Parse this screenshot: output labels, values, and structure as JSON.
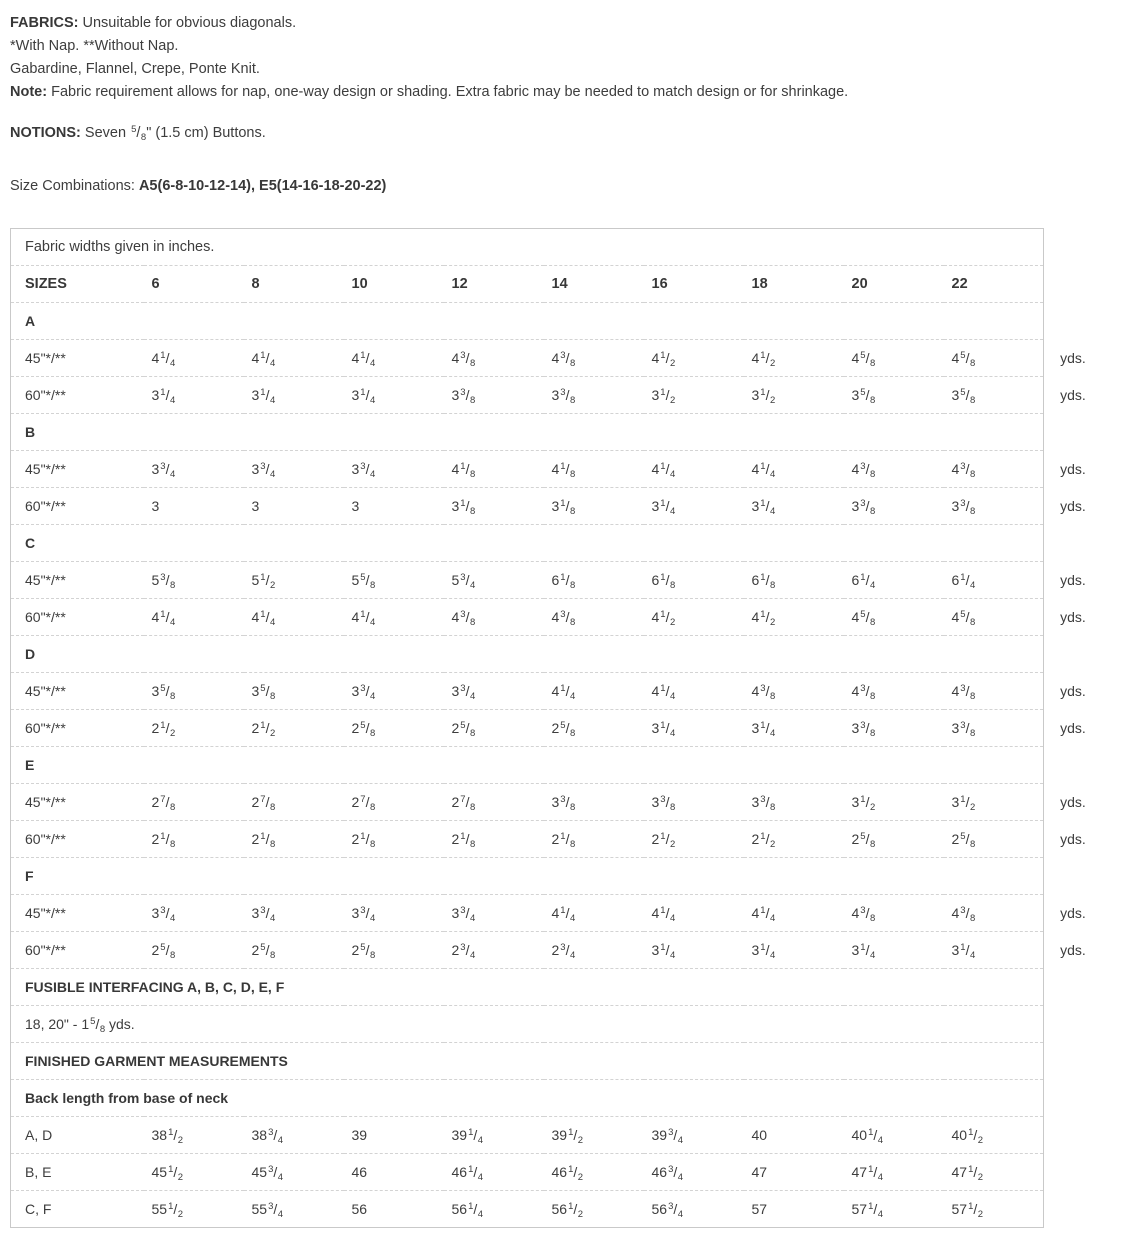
{
  "page": {
    "fabrics_label": "FABRICS:",
    "fabrics_text": " Unsuitable for obvious diagonals.",
    "nap_note": "*With Nap. **Without Nap.",
    "fabric_list": "Gabardine, Flannel, Crepe, Ponte Knit.",
    "note_label": "Note:",
    "note_text": " Fabric requirement allows for nap, one-way design or shading. Extra fabric may be needed to match design or for shrinkage.",
    "notions_label": "NOTIONS:",
    "notions_prefix": " Seven ",
    "notions_fraction": "5/8",
    "notions_suffix": "\" (1.5 cm) Buttons.",
    "size_combinations_label": "Size Combinations: ",
    "size_combinations_value": "A5(6-8-10-12-14), E5(14-16-18-20-22)"
  },
  "table": {
    "caption": "Fabric widths given in inches.",
    "header": [
      "SIZES",
      "6",
      "8",
      "10",
      "12",
      "14",
      "16",
      "18",
      "20",
      "22"
    ],
    "sections": [
      {
        "name": "A",
        "rows": [
          {
            "label": "45\"*/**",
            "values": [
              "4 1/4",
              "4 1/4",
              "4 1/4",
              "4 3/8",
              "4 3/8",
              "4 1/2",
              "4 1/2",
              "4 5/8",
              "4 5/8"
            ],
            "unit": "yds."
          },
          {
            "label": "60\"*/**",
            "values": [
              "3 1/4",
              "3 1/4",
              "3 1/4",
              "3 3/8",
              "3 3/8",
              "3 1/2",
              "3 1/2",
              "3 5/8",
              "3 5/8"
            ],
            "unit": "yds."
          }
        ]
      },
      {
        "name": "B",
        "rows": [
          {
            "label": "45\"*/**",
            "values": [
              "3 3/4",
              "3 3/4",
              "3 3/4",
              "4 1/8",
              "4 1/8",
              "4 1/4",
              "4 1/4",
              "4 3/8",
              "4 3/8"
            ],
            "unit": "yds."
          },
          {
            "label": "60\"*/**",
            "values": [
              "3",
              "3",
              "3",
              "3 1/8",
              "3 1/8",
              "3 1/4",
              "3 1/4",
              "3 3/8",
              "3 3/8"
            ],
            "unit": "yds."
          }
        ]
      },
      {
        "name": "C",
        "rows": [
          {
            "label": "45\"*/**",
            "values": [
              "5 3/8",
              "5 1/2",
              "5 5/8",
              "5 3/4",
              "6 1/8",
              "6 1/8",
              "6 1/8",
              "6 1/4",
              "6 1/4"
            ],
            "unit": "yds."
          },
          {
            "label": "60\"*/**",
            "values": [
              "4 1/4",
              "4 1/4",
              "4 1/4",
              "4 3/8",
              "4 3/8",
              "4 1/2",
              "4 1/2",
              "4 5/8",
              "4 5/8"
            ],
            "unit": "yds."
          }
        ]
      },
      {
        "name": "D",
        "rows": [
          {
            "label": "45\"*/**",
            "values": [
              "3 5/8",
              "3 5/8",
              "3 3/4",
              "3 3/4",
              "4 1/4",
              "4 1/4",
              "4 3/8",
              "4 3/8",
              "4 3/8"
            ],
            "unit": "yds."
          },
          {
            "label": "60\"*/**",
            "values": [
              "2 1/2",
              "2 1/2",
              "2 5/8",
              "2 5/8",
              "2 5/8",
              "3 1/4",
              "3 1/4",
              "3 3/8",
              "3 3/8"
            ],
            "unit": "yds."
          }
        ]
      },
      {
        "name": "E",
        "rows": [
          {
            "label": "45\"*/**",
            "values": [
              "2 7/8",
              "2 7/8",
              "2 7/8",
              "2 7/8",
              "3 3/8",
              "3 3/8",
              "3 3/8",
              "3 1/2",
              "3 1/2"
            ],
            "unit": "yds."
          },
          {
            "label": "60\"*/**",
            "values": [
              "2 1/8",
              "2 1/8",
              "2 1/8",
              "2 1/8",
              "2 1/8",
              "2 1/2",
              "2 1/2",
              "2 5/8",
              "2 5/8"
            ],
            "unit": "yds."
          }
        ]
      },
      {
        "name": "F",
        "rows": [
          {
            "label": "45\"*/**",
            "values": [
              "3 3/4",
              "3 3/4",
              "3 3/4",
              "3 3/4",
              "4 1/4",
              "4 1/4",
              "4 1/4",
              "4 3/8",
              "4 3/8"
            ],
            "unit": "yds."
          },
          {
            "label": "60\"*/**",
            "values": [
              "2 5/8",
              "2 5/8",
              "2 5/8",
              "2 3/4",
              "2 3/4",
              "3 1/4",
              "3 1/4",
              "3 1/4",
              "3 1/4"
            ],
            "unit": "yds."
          }
        ]
      }
    ],
    "interfacing_title": "FUSIBLE INTERFACING A, B, C, D, E, F",
    "interfacing_prefix": "18, 20\" - ",
    "interfacing_fraction": "1 5/8",
    "interfacing_suffix": " yds.",
    "finished_title": "FINISHED GARMENT MEASUREMENTS",
    "back_length_title": "Back length from base of neck",
    "measurement_rows": [
      {
        "label": "A, D",
        "values": [
          "38 1/2",
          "38 3/4",
          "39",
          "39 1/4",
          "39 1/2",
          "39 3/4",
          "40",
          "40 1/4",
          "40 1/2"
        ]
      },
      {
        "label": "B, E",
        "values": [
          "45 1/2",
          "45 3/4",
          "46",
          "46 1/4",
          "46 1/2",
          "46 3/4",
          "47",
          "47 1/4",
          "47 1/2"
        ]
      },
      {
        "label": "C, F",
        "values": [
          "55 1/2",
          "55 3/4",
          "56",
          "56 1/4",
          "56 1/2",
          "56 3/4",
          "57",
          "57 1/4",
          "57 1/2"
        ]
      }
    ]
  }
}
